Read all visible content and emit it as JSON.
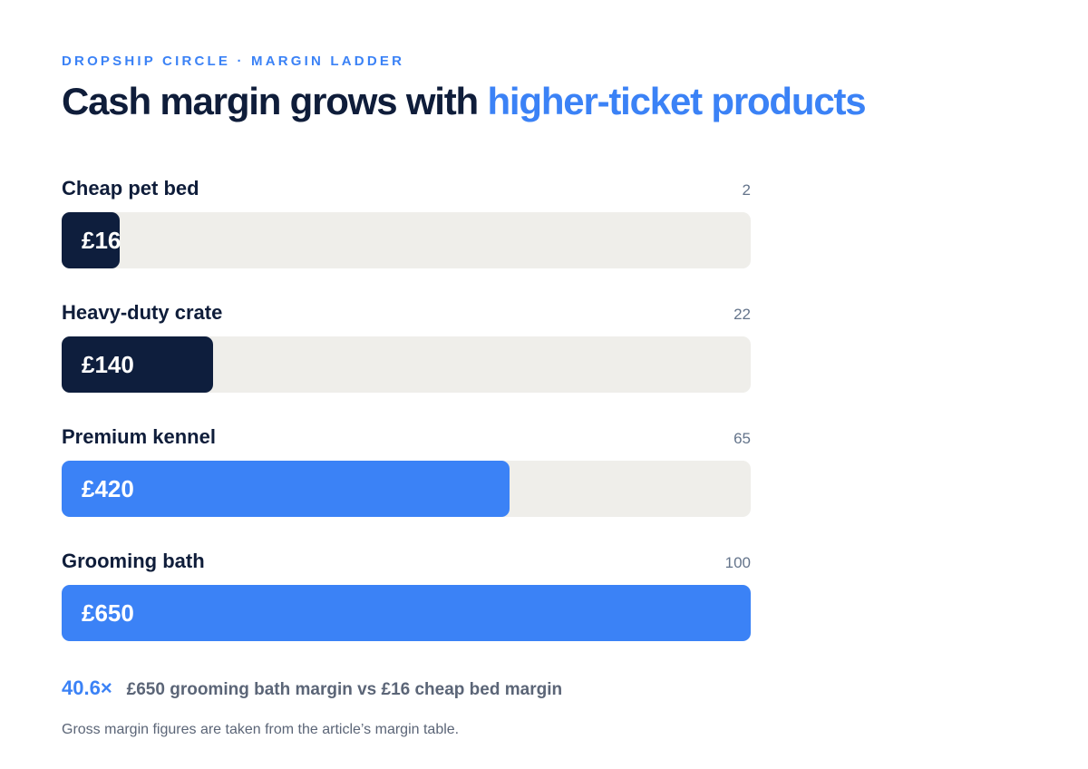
{
  "eyebrow": "DROPSHIP CIRCLE · MARGIN LADDER",
  "title": {
    "main": "Cash margin grows with ",
    "accent": "higher-ticket products"
  },
  "colors": {
    "dark": "#0e1e3d",
    "accent": "#3b82f6",
    "track": "#efeeea"
  },
  "chart_data": {
    "type": "bar",
    "orientation": "horizontal",
    "title": "Cash margin grows with higher-ticket products",
    "categories": [
      "Cheap pet bed",
      "Heavy-duty crate",
      "Premium kennel",
      "Grooming bath"
    ],
    "values": [
      16,
      140,
      420,
      650
    ],
    "value_labels": [
      "£16",
      "£140",
      "£420",
      "£650"
    ],
    "index_values": [
      2,
      22,
      65,
      100
    ],
    "bar_colors": [
      "dark",
      "dark",
      "blue",
      "blue"
    ],
    "xlim": [
      0,
      100
    ],
    "grid": false,
    "legend": "none"
  },
  "summary": {
    "multiplier": "40.6×",
    "text": "£650 grooming bath margin vs £16 cheap bed margin"
  },
  "footnote": "Gross margin figures are taken from the article’s margin table."
}
